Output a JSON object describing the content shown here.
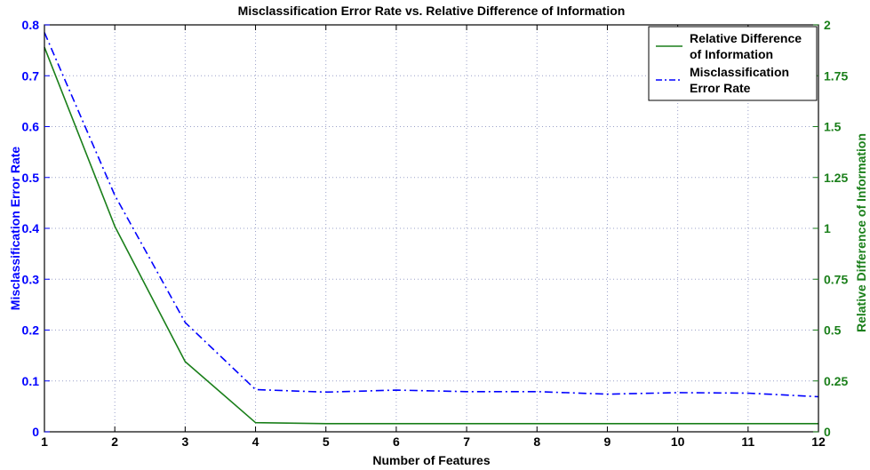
{
  "chart_data": {
    "type": "line",
    "title": "Misclassification Error Rate vs. Relative Difference of Information",
    "xlabel": "Number of Features",
    "ylabel_left": "Misclassification Error Rate",
    "ylabel_right": "Relative Difference of Information",
    "x": [
      1,
      2,
      3,
      4,
      5,
      6,
      7,
      8,
      9,
      10,
      11,
      12
    ],
    "xlim": [
      1,
      12
    ],
    "ylim_left": [
      0,
      0.8
    ],
    "ylim_right": [
      0,
      2
    ],
    "x_ticks": [
      "1",
      "2",
      "3",
      "4",
      "5",
      "6",
      "7",
      "8",
      "9",
      "10",
      "11",
      "12"
    ],
    "y_ticks_left": [
      "0",
      "0.1",
      "0.2",
      "0.3",
      "0.4",
      "0.5",
      "0.6",
      "0.7",
      "0.8"
    ],
    "y_ticks_right": [
      "0",
      "0.25",
      "0.5",
      "0.75",
      "1",
      "1.25",
      "1.5",
      "1.75",
      "2"
    ],
    "grid": true,
    "legend_position": "top-right",
    "series": [
      {
        "name": "Relative Difference of Information",
        "name_lines": [
          "Relative Difference",
          "of Information"
        ],
        "axis": "right",
        "style": "solid",
        "color": "#1a7f1a",
        "values": [
          1.89,
          1.01,
          0.345,
          0.045,
          0.04,
          0.04,
          0.04,
          0.04,
          0.04,
          0.04,
          0.04,
          0.04
        ]
      },
      {
        "name": "Misclassification Error Rate",
        "name_lines": [
          "Misclassification",
          "Error Rate"
        ],
        "axis": "left",
        "style": "dashdot",
        "color": "#0000ff",
        "values": [
          0.785,
          0.465,
          0.215,
          0.083,
          0.078,
          0.082,
          0.079,
          0.079,
          0.074,
          0.077,
          0.076,
          0.069
        ]
      }
    ],
    "colors": {
      "left_axis": "#0000ff",
      "right_axis": "#1a7f1a",
      "grid": "#9aa0c8"
    }
  }
}
